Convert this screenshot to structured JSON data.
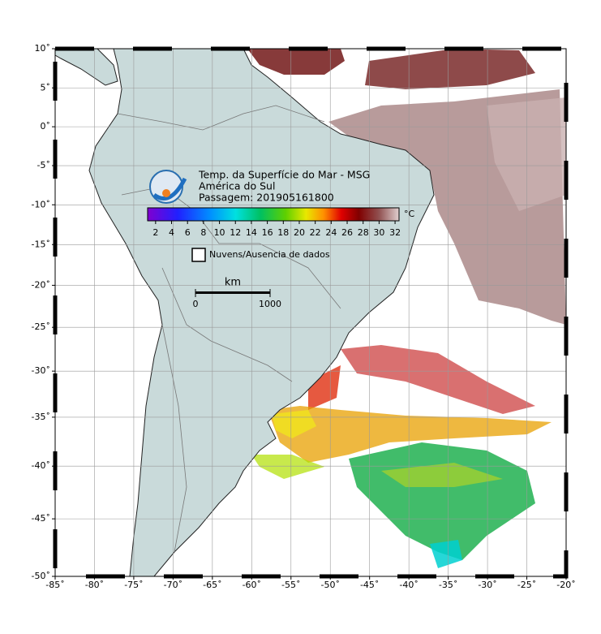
{
  "header": {
    "title": "Temp. da Superfície do Mar - MSG",
    "region": "América do Sul",
    "pass": "Passagem: 201905161800"
  },
  "colorbar": {
    "unit": "°C",
    "lim": [
      1,
      32.5
    ],
    "ticks": [
      2,
      4,
      6,
      8,
      10,
      12,
      14,
      16,
      18,
      20,
      22,
      24,
      26,
      28,
      30,
      32
    ]
  },
  "legend": {
    "label": "Nuvens/Ausencia de dados"
  },
  "scale_bar": {
    "unit": "km",
    "ticks": [
      0,
      1000
    ]
  },
  "axes": {
    "xlim": [
      -85,
      -20
    ],
    "ylim": [
      -50,
      10
    ],
    "xticks": [
      {
        "value": -85,
        "label": "-85˚"
      },
      {
        "value": -80,
        "label": "-80˚"
      },
      {
        "value": -75,
        "label": "-75˚"
      },
      {
        "value": -70,
        "label": "-70˚"
      },
      {
        "value": -65,
        "label": "-65˚"
      },
      {
        "value": -60,
        "label": "-60˚"
      },
      {
        "value": -55,
        "label": "-55˚"
      },
      {
        "value": -50,
        "label": "-50˚"
      },
      {
        "value": -45,
        "label": "-45˚"
      },
      {
        "value": -40,
        "label": "-40˚"
      },
      {
        "value": -35,
        "label": "-35˚"
      },
      {
        "value": -30,
        "label": "-30˚"
      },
      {
        "value": -25,
        "label": "-25˚"
      },
      {
        "value": -20,
        "label": "-20˚"
      }
    ],
    "yticks": [
      {
        "value": 10,
        "label": "10˚"
      },
      {
        "value": 5,
        "label": "5˚"
      },
      {
        "value": 0,
        "label": "0˚"
      },
      {
        "value": -5,
        "label": "-5˚"
      },
      {
        "value": -10,
        "label": "-10˚"
      },
      {
        "value": -15,
        "label": "-15˚"
      },
      {
        "value": -20,
        "label": "-20˚"
      },
      {
        "value": -25,
        "label": "-25˚"
      },
      {
        "value": -30,
        "label": "-30˚"
      },
      {
        "value": -35,
        "label": "-35˚"
      },
      {
        "value": -40,
        "label": "-40˚"
      },
      {
        "value": -45,
        "label": "-45˚"
      },
      {
        "value": -50,
        "label": "-50˚"
      }
    ]
  }
}
